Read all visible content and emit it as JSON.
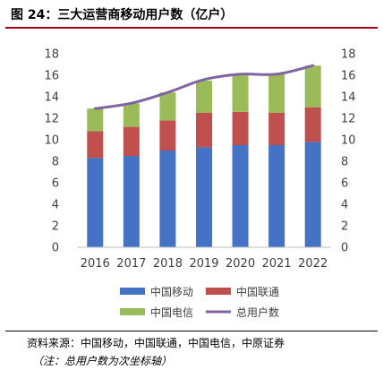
{
  "title": "图 24：三大运营商移动用户数（亿户）",
  "source": "资料来源：中国移动，中国联通，中国电信，中原证券",
  "note": "（注：总用户数为次坐标轴）",
  "chart_data": {
    "type": "bar",
    "stacked": true,
    "categories": [
      "2016",
      "2017",
      "2018",
      "2019",
      "2020",
      "2021",
      "2022"
    ],
    "series": [
      {
        "name": "中国移动",
        "type": "bar",
        "color": "#4472c4",
        "values": [
          8.3,
          8.5,
          9.0,
          9.3,
          9.5,
          9.5,
          9.8
        ]
      },
      {
        "name": "中国联通",
        "type": "bar",
        "color": "#c0504d",
        "values": [
          2.5,
          2.7,
          2.8,
          3.2,
          3.1,
          3.0,
          3.2
        ]
      },
      {
        "name": "中国电信",
        "type": "bar",
        "color": "#9bbb59",
        "values": [
          2.1,
          2.2,
          2.6,
          3.0,
          3.5,
          3.6,
          3.9
        ]
      },
      {
        "name": "总用户数",
        "type": "line",
        "axis": "secondary",
        "color": "#8064a2",
        "values": [
          12.9,
          13.4,
          14.4,
          15.6,
          16.1,
          16.1,
          16.9
        ]
      }
    ],
    "y_ticks": [
      "0",
      "2",
      "4",
      "6",
      "8",
      "10",
      "12",
      "14",
      "16",
      "18"
    ],
    "y2_ticks": [
      "0",
      "2",
      "4",
      "6",
      "8",
      "10",
      "12",
      "14",
      "16",
      "18"
    ],
    "ylim": [
      0,
      18
    ],
    "y2lim": [
      0,
      18
    ],
    "grid": false,
    "legend": "bottom"
  }
}
